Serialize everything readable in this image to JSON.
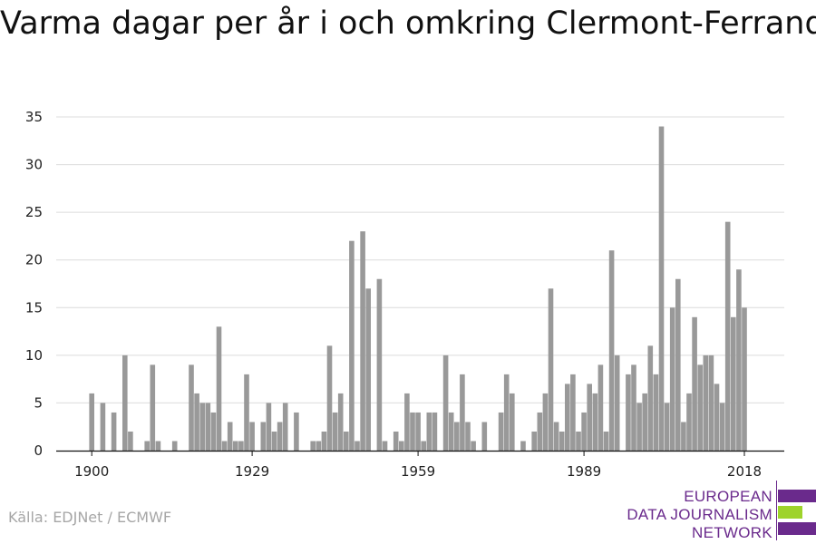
{
  "title": "Varma dagar per år i och omkring Clermont-Ferrand",
  "source": "Källa: EDJNet / ECMWF",
  "logo": {
    "lines": [
      "EUROPEAN",
      "DATA JOURNALISM",
      "NETWORK"
    ],
    "color": "#6a2a8c",
    "accent": "#9ed32b"
  },
  "chart_data": {
    "type": "bar",
    "bar_color": "#999999",
    "grid": true,
    "ylim": [
      0,
      35
    ],
    "yticks": [
      0,
      5,
      10,
      15,
      20,
      25,
      30,
      35
    ],
    "xticks": [
      1900,
      1929,
      1959,
      1989,
      2018
    ],
    "x_range": [
      1900,
      2018
    ],
    "years": [
      1900,
      1901,
      1902,
      1903,
      1904,
      1905,
      1906,
      1907,
      1908,
      1909,
      1910,
      1911,
      1912,
      1913,
      1914,
      1915,
      1916,
      1917,
      1918,
      1919,
      1920,
      1921,
      1922,
      1923,
      1924,
      1925,
      1926,
      1927,
      1928,
      1929,
      1930,
      1931,
      1932,
      1933,
      1934,
      1935,
      1936,
      1937,
      1938,
      1939,
      1940,
      1941,
      1942,
      1943,
      1944,
      1945,
      1946,
      1947,
      1948,
      1949,
      1950,
      1951,
      1952,
      1953,
      1954,
      1955,
      1956,
      1957,
      1958,
      1959,
      1960,
      1961,
      1962,
      1963,
      1964,
      1965,
      1966,
      1967,
      1968,
      1969,
      1970,
      1971,
      1972,
      1973,
      1974,
      1975,
      1976,
      1977,
      1978,
      1979,
      1980,
      1981,
      1982,
      1983,
      1984,
      1985,
      1986,
      1987,
      1988,
      1989,
      1990,
      1991,
      1992,
      1993,
      1994,
      1995,
      1996,
      1997,
      1998,
      1999,
      2000,
      2001,
      2002,
      2003,
      2004,
      2005,
      2006,
      2007,
      2008,
      2009,
      2010,
      2011,
      2012,
      2013,
      2014,
      2015,
      2016,
      2017,
      2018
    ],
    "values": [
      6,
      0,
      5,
      0,
      4,
      0,
      10,
      2,
      0,
      0,
      1,
      9,
      1,
      0,
      0,
      1,
      0,
      0,
      9,
      6,
      5,
      5,
      4,
      13,
      1,
      3,
      1,
      1,
      8,
      3,
      0,
      3,
      5,
      2,
      3,
      5,
      0,
      4,
      0,
      0,
      1,
      1,
      2,
      11,
      4,
      6,
      2,
      22,
      1,
      23,
      17,
      0,
      18,
      1,
      0,
      2,
      1,
      6,
      4,
      4,
      1,
      4,
      4,
      0,
      10,
      4,
      3,
      8,
      3,
      1,
      0,
      3,
      0,
      0,
      4,
      8,
      6,
      0,
      1,
      0,
      2,
      4,
      6,
      17,
      3,
      2,
      7,
      8,
      2,
      4,
      7,
      6,
      9,
      2,
      21,
      10,
      0,
      8,
      9,
      5,
      6,
      11,
      8,
      34,
      5,
      15,
      18,
      3,
      6,
      14,
      9,
      10,
      10,
      7,
      5,
      24,
      14,
      19,
      15
    ]
  }
}
